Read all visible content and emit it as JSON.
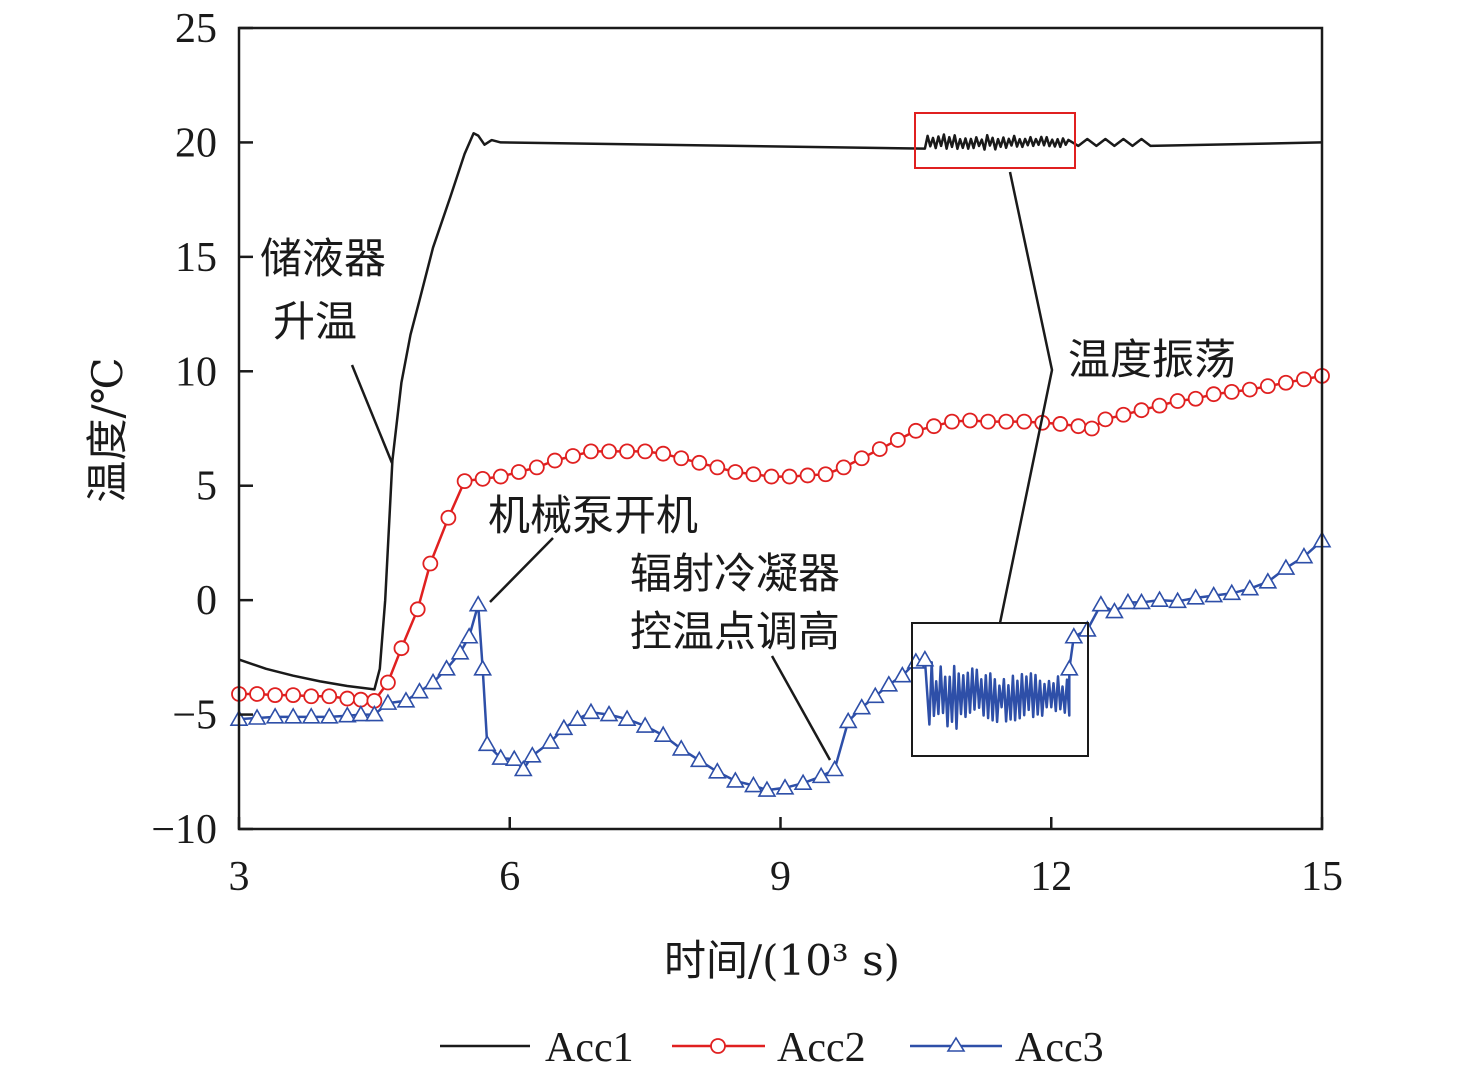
{
  "chart_data": {
    "type": "line",
    "xlabel": "时间/(10³ s)",
    "ylabel": "温度/℃",
    "xlim": [
      3,
      15
    ],
    "ylim": [
      -10,
      25
    ],
    "xticks": [
      "3",
      "6",
      "9",
      "12",
      "15"
    ],
    "yticks": [
      "−10",
      "−5",
      "0",
      "5",
      "10",
      "15",
      "20",
      "25"
    ],
    "grid": false,
    "legend_position": "bottom",
    "series": [
      {
        "name": "Acc1",
        "color": "#1a1a1a",
        "marker": "none",
        "points": [
          [
            3,
            -2.6
          ],
          [
            3.3,
            -3.0
          ],
          [
            3.6,
            -3.3
          ],
          [
            3.9,
            -3.55
          ],
          [
            4.2,
            -3.75
          ],
          [
            4.5,
            -3.9
          ],
          [
            4.56,
            -3.0
          ],
          [
            4.62,
            0
          ],
          [
            4.7,
            6.1
          ],
          [
            4.8,
            9.5
          ],
          [
            4.9,
            11.6
          ],
          [
            5.0,
            13.1
          ],
          [
            5.15,
            15.4
          ],
          [
            5.34,
            17.6
          ],
          [
            5.5,
            19.5
          ],
          [
            5.6,
            20.4
          ],
          [
            5.65,
            20.3
          ],
          [
            5.72,
            19.9
          ],
          [
            5.8,
            20.1
          ],
          [
            5.9,
            20
          ],
          [
            15,
            20
          ]
        ],
        "oscillation": {
          "x_range": [
            10.6,
            12.2
          ],
          "center": 20,
          "amplitude": 0.4
        }
      },
      {
        "name": "Acc2",
        "color": "#e02020",
        "marker": "circle",
        "points": [
          [
            3,
            -4.1
          ],
          [
            3.2,
            -4.1
          ],
          [
            3.4,
            -4.15
          ],
          [
            3.6,
            -4.15
          ],
          [
            3.8,
            -4.2
          ],
          [
            4.0,
            -4.2
          ],
          [
            4.2,
            -4.3
          ],
          [
            4.35,
            -4.35
          ],
          [
            4.5,
            -4.4
          ],
          [
            4.65,
            -3.6
          ],
          [
            4.8,
            -2.1
          ],
          [
            4.98,
            -0.4
          ],
          [
            5.12,
            1.6
          ],
          [
            5.32,
            3.6
          ],
          [
            5.5,
            5.2
          ],
          [
            5.7,
            5.3
          ],
          [
            5.9,
            5.4
          ],
          [
            6.1,
            5.6
          ],
          [
            6.3,
            5.8
          ],
          [
            6.5,
            6.1
          ],
          [
            6.7,
            6.3
          ],
          [
            6.9,
            6.5
          ],
          [
            7.1,
            6.5
          ],
          [
            7.3,
            6.5
          ],
          [
            7.5,
            6.5
          ],
          [
            7.7,
            6.4
          ],
          [
            7.9,
            6.2
          ],
          [
            8.1,
            6.0
          ],
          [
            8.3,
            5.8
          ],
          [
            8.5,
            5.6
          ],
          [
            8.7,
            5.5
          ],
          [
            8.9,
            5.4
          ],
          [
            9.1,
            5.4
          ],
          [
            9.3,
            5.45
          ],
          [
            9.5,
            5.5
          ],
          [
            9.7,
            5.8
          ],
          [
            9.9,
            6.2
          ],
          [
            10.1,
            6.6
          ],
          [
            10.3,
            7.0
          ],
          [
            10.5,
            7.4
          ],
          [
            10.7,
            7.6
          ],
          [
            10.9,
            7.8
          ],
          [
            11.1,
            7.85
          ],
          [
            11.3,
            7.8
          ],
          [
            11.5,
            7.8
          ],
          [
            11.7,
            7.8
          ],
          [
            11.9,
            7.75
          ],
          [
            12.1,
            7.7
          ],
          [
            12.3,
            7.6
          ],
          [
            12.45,
            7.5
          ],
          [
            12.6,
            7.9
          ],
          [
            12.8,
            8.1
          ],
          [
            13.0,
            8.3
          ],
          [
            13.2,
            8.5
          ],
          [
            13.4,
            8.7
          ],
          [
            13.6,
            8.8
          ],
          [
            13.8,
            9.0
          ],
          [
            14.0,
            9.1
          ],
          [
            14.2,
            9.2
          ],
          [
            14.4,
            9.35
          ],
          [
            14.6,
            9.5
          ],
          [
            14.8,
            9.65
          ],
          [
            15.0,
            9.8
          ]
        ]
      },
      {
        "name": "Acc3",
        "color": "#2e4fa8",
        "marker": "triangle",
        "points": [
          [
            3,
            -5.2
          ],
          [
            3.2,
            -5.15
          ],
          [
            3.4,
            -5.1
          ],
          [
            3.6,
            -5.1
          ],
          [
            3.8,
            -5.1
          ],
          [
            4.0,
            -5.1
          ],
          [
            4.2,
            -5.05
          ],
          [
            4.35,
            -5.0
          ],
          [
            4.5,
            -5.0
          ],
          [
            4.65,
            -4.5
          ],
          [
            4.85,
            -4.4
          ],
          [
            5.0,
            -4.0
          ],
          [
            5.15,
            -3.6
          ],
          [
            5.3,
            -3.0
          ],
          [
            5.45,
            -2.3
          ],
          [
            5.55,
            -1.6
          ],
          [
            5.65,
            -0.2
          ],
          [
            5.7,
            -3.0
          ],
          [
            5.75,
            -6.3
          ],
          [
            5.9,
            -6.9
          ],
          [
            6.05,
            -6.95
          ],
          [
            6.15,
            -7.4
          ],
          [
            6.25,
            -6.8
          ],
          [
            6.45,
            -6.2
          ],
          [
            6.6,
            -5.6
          ],
          [
            6.75,
            -5.2
          ],
          [
            6.9,
            -4.9
          ],
          [
            7.1,
            -5.0
          ],
          [
            7.3,
            -5.2
          ],
          [
            7.5,
            -5.5
          ],
          [
            7.7,
            -5.9
          ],
          [
            7.9,
            -6.5
          ],
          [
            8.1,
            -7.0
          ],
          [
            8.3,
            -7.5
          ],
          [
            8.5,
            -7.9
          ],
          [
            8.7,
            -8.1
          ],
          [
            8.85,
            -8.3
          ],
          [
            9.05,
            -8.2
          ],
          [
            9.25,
            -8.0
          ],
          [
            9.45,
            -7.7
          ],
          [
            9.6,
            -7.4
          ],
          [
            9.75,
            -5.3
          ],
          [
            9.9,
            -4.7
          ],
          [
            10.05,
            -4.2
          ],
          [
            10.2,
            -3.7
          ],
          [
            10.35,
            -3.3
          ],
          [
            10.5,
            -2.7
          ],
          [
            10.6,
            -2.6
          ]
        ],
        "oscillation": {
          "x_range": [
            10.65,
            12.2
          ],
          "center": -4.2,
          "amplitude": 1.6
        },
        "points_after": [
          [
            12.2,
            -3.0
          ],
          [
            12.25,
            -1.6
          ],
          [
            12.4,
            -1.3
          ],
          [
            12.55,
            -0.2
          ],
          [
            12.7,
            -0.5
          ],
          [
            12.85,
            -0.1
          ],
          [
            13.0,
            -0.1
          ],
          [
            13.2,
            0.0
          ],
          [
            13.4,
            -0.05
          ],
          [
            13.6,
            0.1
          ],
          [
            13.8,
            0.2
          ],
          [
            14.0,
            0.3
          ],
          [
            14.2,
            0.5
          ],
          [
            14.4,
            0.8
          ],
          [
            14.6,
            1.4
          ],
          [
            14.8,
            1.9
          ],
          [
            15.0,
            2.6
          ]
        ]
      }
    ],
    "annotations": [
      {
        "lines": [
          "储液器",
          "升温"
        ]
      },
      {
        "lines": [
          "机械泵开机"
        ]
      },
      {
        "lines": [
          "辐射冷凝器",
          "控温点调高"
        ]
      },
      {
        "lines": [
          "温度振荡"
        ]
      }
    ]
  }
}
